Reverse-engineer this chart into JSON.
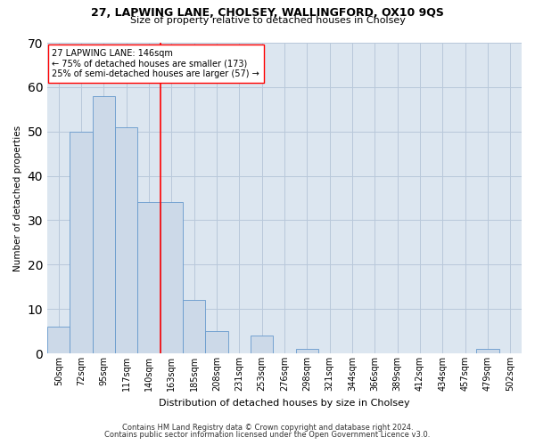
{
  "title1": "27, LAPWING LANE, CHOLSEY, WALLINGFORD, OX10 9QS",
  "title2": "Size of property relative to detached houses in Cholsey",
  "xlabel": "Distribution of detached houses by size in Cholsey",
  "ylabel": "Number of detached properties",
  "footnote1": "Contains HM Land Registry data © Crown copyright and database right 2024.",
  "footnote2": "Contains public sector information licensed under the Open Government Licence v3.0.",
  "bin_labels": [
    "50sqm",
    "72sqm",
    "95sqm",
    "117sqm",
    "140sqm",
    "163sqm",
    "185sqm",
    "208sqm",
    "231sqm",
    "253sqm",
    "276sqm",
    "298sqm",
    "321sqm",
    "344sqm",
    "366sqm",
    "389sqm",
    "412sqm",
    "434sqm",
    "457sqm",
    "479sqm",
    "502sqm"
  ],
  "bar_values": [
    6,
    50,
    58,
    51,
    34,
    34,
    12,
    5,
    0,
    4,
    0,
    1,
    0,
    0,
    0,
    0,
    0,
    0,
    0,
    1,
    0
  ],
  "bar_color": "#ccd9e8",
  "bar_edge_color": "#6699cc",
  "grid_color": "#b8c8da",
  "background_color": "#dce6f0",
  "annotation_line1": "27 LAPWING LANE: 146sqm",
  "annotation_line2": "← 75% of detached houses are smaller (173)",
  "annotation_line3": "25% of semi-detached houses are larger (57) →",
  "annotation_box_color": "white",
  "annotation_box_edge_color": "red",
  "vline_x": 4.5,
  "vline_color": "red",
  "ylim": [
    0,
    70
  ],
  "yticks": [
    0,
    10,
    20,
    30,
    40,
    50,
    60,
    70
  ]
}
